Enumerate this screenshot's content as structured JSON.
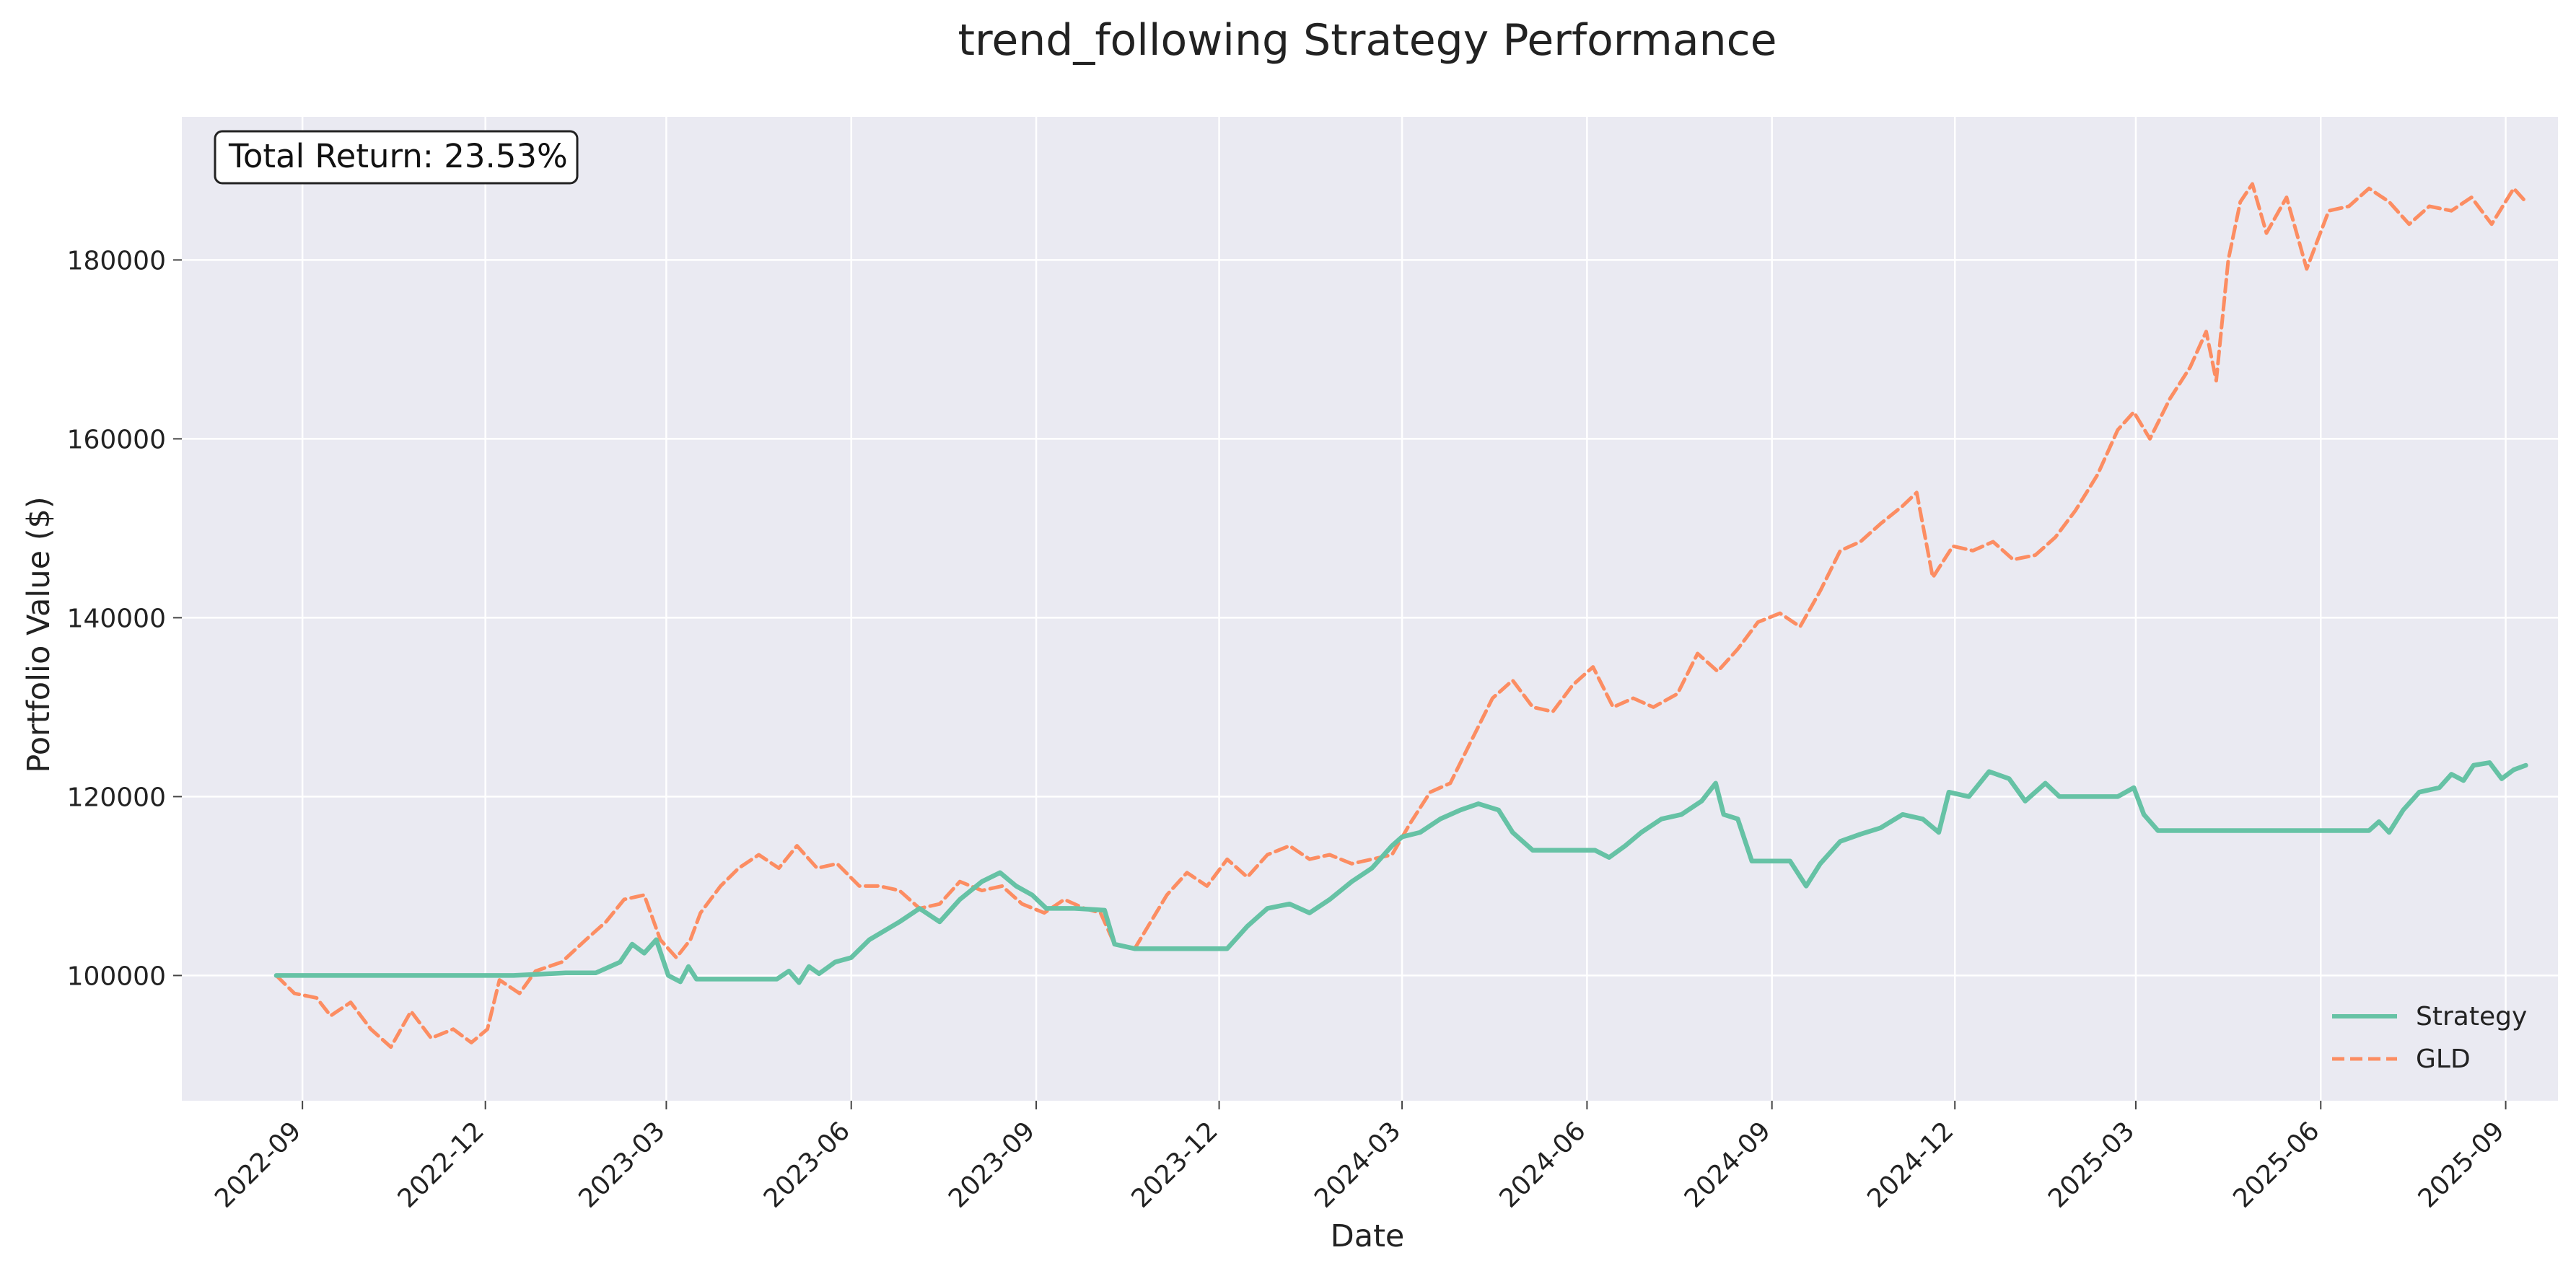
{
  "chart_data": {
    "type": "line",
    "title": "trend_following Strategy Performance",
    "xlabel": "Date",
    "ylabel": "Portfolio Value ($)",
    "annotation": "Total Return: 23.53%",
    "x_ticks": [
      "2022-09",
      "2022-12",
      "2023-03",
      "2023-06",
      "2023-09",
      "2023-12",
      "2024-03",
      "2024-06",
      "2024-09",
      "2024-12",
      "2025-03",
      "2025-06",
      "2025-09"
    ],
    "y_ticks": [
      "100000",
      "120000",
      "140000",
      "160000",
      "180000"
    ],
    "xlim": [
      "2022-07-03",
      "2025-09-27"
    ],
    "ylim": [
      86000,
      196000
    ],
    "grid": true,
    "legend_position": "lower-right",
    "series": [
      {
        "name": "Strategy",
        "color": "#66c2a5",
        "style": "solid",
        "points": [
          [
            "2022-08-19",
            100000
          ],
          [
            "2022-09-15",
            100000
          ],
          [
            "2022-10-15",
            100000
          ],
          [
            "2022-11-15",
            100000
          ],
          [
            "2022-12-15",
            100000
          ],
          [
            "2023-01-10",
            100300
          ],
          [
            "2023-01-25",
            100300
          ],
          [
            "2023-02-06",
            101500
          ],
          [
            "2023-02-12",
            103500
          ],
          [
            "2023-02-18",
            102500
          ],
          [
            "2023-02-24",
            104000
          ],
          [
            "2023-03-02",
            100000
          ],
          [
            "2023-03-08",
            99300
          ],
          [
            "2023-03-12",
            101000
          ],
          [
            "2023-03-16",
            99600
          ],
          [
            "2023-04-10",
            99600
          ],
          [
            "2023-04-25",
            99600
          ],
          [
            "2023-05-01",
            100500
          ],
          [
            "2023-05-06",
            99200
          ],
          [
            "2023-05-11",
            101000
          ],
          [
            "2023-05-16",
            100200
          ],
          [
            "2023-05-24",
            101500
          ],
          [
            "2023-06-01",
            102000
          ],
          [
            "2023-06-10",
            104000
          ],
          [
            "2023-06-25",
            106000
          ],
          [
            "2023-07-05",
            107500
          ],
          [
            "2023-07-15",
            106000
          ],
          [
            "2023-07-25",
            108500
          ],
          [
            "2023-08-05",
            110500
          ],
          [
            "2023-08-14",
            111500
          ],
          [
            "2023-08-22",
            110000
          ],
          [
            "2023-08-30",
            109000
          ],
          [
            "2023-09-06",
            107500
          ],
          [
            "2023-09-20",
            107500
          ],
          [
            "2023-10-05",
            107300
          ],
          [
            "2023-10-10",
            103500
          ],
          [
            "2023-10-20",
            103000
          ],
          [
            "2023-11-15",
            103000
          ],
          [
            "2023-12-05",
            103000
          ],
          [
            "2023-12-15",
            105500
          ],
          [
            "2023-12-25",
            107500
          ],
          [
            "2024-01-05",
            108000
          ],
          [
            "2024-01-15",
            107000
          ],
          [
            "2024-01-25",
            108500
          ],
          [
            "2024-02-05",
            110500
          ],
          [
            "2024-02-15",
            112000
          ],
          [
            "2024-02-25",
            114500
          ],
          [
            "2024-03-01",
            115500
          ],
          [
            "2024-03-10",
            116000
          ],
          [
            "2024-03-20",
            117500
          ],
          [
            "2024-03-30",
            118500
          ],
          [
            "2024-04-08",
            119200
          ],
          [
            "2024-04-18",
            118500
          ],
          [
            "2024-04-25",
            116000
          ],
          [
            "2024-05-05",
            114000
          ],
          [
            "2024-05-20",
            114000
          ],
          [
            "2024-06-05",
            114000
          ],
          [
            "2024-06-12",
            113200
          ],
          [
            "2024-06-20",
            114500
          ],
          [
            "2024-06-28",
            116000
          ],
          [
            "2024-07-08",
            117500
          ],
          [
            "2024-07-18",
            118000
          ],
          [
            "2024-07-28",
            119500
          ],
          [
            "2024-08-04",
            121500
          ],
          [
            "2024-08-08",
            118000
          ],
          [
            "2024-08-15",
            117500
          ],
          [
            "2024-08-22",
            112800
          ],
          [
            "2024-09-10",
            112800
          ],
          [
            "2024-09-18",
            110000
          ],
          [
            "2024-09-25",
            112500
          ],
          [
            "2024-10-05",
            115000
          ],
          [
            "2024-10-15",
            115800
          ],
          [
            "2024-10-25",
            116500
          ],
          [
            "2024-11-05",
            118000
          ],
          [
            "2024-11-15",
            117500
          ],
          [
            "2024-11-23",
            116000
          ],
          [
            "2024-11-28",
            120500
          ],
          [
            "2024-12-08",
            120000
          ],
          [
            "2024-12-18",
            122800
          ],
          [
            "2024-12-28",
            122000
          ],
          [
            "2025-01-05",
            119500
          ],
          [
            "2025-01-15",
            121500
          ],
          [
            "2025-01-22",
            120000
          ],
          [
            "2025-02-05",
            120000
          ],
          [
            "2025-02-20",
            120000
          ],
          [
            "2025-02-28",
            121000
          ],
          [
            "2025-03-05",
            118000
          ],
          [
            "2025-03-12",
            116200
          ],
          [
            "2025-04-15",
            116200
          ],
          [
            "2025-05-15",
            116200
          ],
          [
            "2025-06-25",
            116200
          ],
          [
            "2025-06-30",
            117200
          ],
          [
            "2025-07-05",
            116000
          ],
          [
            "2025-07-12",
            118500
          ],
          [
            "2025-07-20",
            120500
          ],
          [
            "2025-07-30",
            121000
          ],
          [
            "2025-08-05",
            122500
          ],
          [
            "2025-08-11",
            121800
          ],
          [
            "2025-08-16",
            123500
          ],
          [
            "2025-08-24",
            123800
          ],
          [
            "2025-08-30",
            122000
          ],
          [
            "2025-09-05",
            123000
          ],
          [
            "2025-09-11",
            123500
          ]
        ]
      },
      {
        "name": "GLD",
        "color": "#fc8d62",
        "style": "dashed",
        "points": [
          [
            "2022-08-19",
            100000
          ],
          [
            "2022-08-28",
            98000
          ],
          [
            "2022-09-08",
            97500
          ],
          [
            "2022-09-15",
            95500
          ],
          [
            "2022-09-25",
            97000
          ],
          [
            "2022-10-05",
            94000
          ],
          [
            "2022-10-15",
            92000
          ],
          [
            "2022-10-25",
            96000
          ],
          [
            "2022-11-04",
            93000
          ],
          [
            "2022-11-15",
            94000
          ],
          [
            "2022-11-24",
            92500
          ],
          [
            "2022-12-02",
            94000
          ],
          [
            "2022-12-08",
            99500
          ],
          [
            "2022-12-18",
            98000
          ],
          [
            "2022-12-26",
            100500
          ],
          [
            "2023-01-08",
            101500
          ],
          [
            "2023-01-20",
            104000
          ],
          [
            "2023-01-30",
            106000
          ],
          [
            "2023-02-08",
            108500
          ],
          [
            "2023-02-18",
            109000
          ],
          [
            "2023-02-26",
            104000
          ],
          [
            "2023-03-06",
            102000
          ],
          [
            "2023-03-13",
            104000
          ],
          [
            "2023-03-18",
            107000
          ],
          [
            "2023-03-28",
            110000
          ],
          [
            "2023-04-06",
            112000
          ],
          [
            "2023-04-16",
            113500
          ],
          [
            "2023-04-26",
            112000
          ],
          [
            "2023-05-05",
            114500
          ],
          [
            "2023-05-15",
            112000
          ],
          [
            "2023-05-25",
            112500
          ],
          [
            "2023-06-05",
            110000
          ],
          [
            "2023-06-15",
            110000
          ],
          [
            "2023-06-25",
            109500
          ],
          [
            "2023-07-05",
            107500
          ],
          [
            "2023-07-15",
            108000
          ],
          [
            "2023-07-25",
            110500
          ],
          [
            "2023-08-05",
            109500
          ],
          [
            "2023-08-15",
            110000
          ],
          [
            "2023-08-25",
            108000
          ],
          [
            "2023-09-05",
            107000
          ],
          [
            "2023-09-15",
            108500
          ],
          [
            "2023-09-25",
            107500
          ],
          [
            "2023-10-03",
            107000
          ],
          [
            "2023-10-10",
            103500
          ],
          [
            "2023-10-20",
            103000
          ],
          [
            "2023-10-28",
            106000
          ],
          [
            "2023-11-05",
            109000
          ],
          [
            "2023-11-15",
            111500
          ],
          [
            "2023-11-25",
            110000
          ],
          [
            "2023-12-05",
            113000
          ],
          [
            "2023-12-15",
            111000
          ],
          [
            "2023-12-25",
            113500
          ],
          [
            "2024-01-05",
            114500
          ],
          [
            "2024-01-15",
            113000
          ],
          [
            "2024-01-25",
            113500
          ],
          [
            "2024-02-05",
            112500
          ],
          [
            "2024-02-15",
            113000
          ],
          [
            "2024-02-25",
            113500
          ],
          [
            "2024-03-05",
            117000
          ],
          [
            "2024-03-15",
            120500
          ],
          [
            "2024-03-25",
            121500
          ],
          [
            "2024-04-05",
            126500
          ],
          [
            "2024-04-15",
            131000
          ],
          [
            "2024-04-25",
            133000
          ],
          [
            "2024-05-05",
            130000
          ],
          [
            "2024-05-15",
            129500
          ],
          [
            "2024-05-25",
            132500
          ],
          [
            "2024-06-04",
            134500
          ],
          [
            "2024-06-14",
            130000
          ],
          [
            "2024-06-24",
            131000
          ],
          [
            "2024-07-04",
            130000
          ],
          [
            "2024-07-16",
            131500
          ],
          [
            "2024-07-26",
            136000
          ],
          [
            "2024-08-05",
            134000
          ],
          [
            "2024-08-15",
            136500
          ],
          [
            "2024-08-25",
            139500
          ],
          [
            "2024-09-05",
            140500
          ],
          [
            "2024-09-15",
            139000
          ],
          [
            "2024-09-25",
            143000
          ],
          [
            "2024-10-05",
            147500
          ],
          [
            "2024-10-15",
            148500
          ],
          [
            "2024-10-25",
            150500
          ],
          [
            "2024-11-05",
            152500
          ],
          [
            "2024-11-12",
            154000
          ],
          [
            "2024-11-20",
            144500
          ],
          [
            "2024-11-30",
            148000
          ],
          [
            "2024-12-10",
            147500
          ],
          [
            "2024-12-20",
            148500
          ],
          [
            "2024-12-30",
            146500
          ],
          [
            "2025-01-10",
            147000
          ],
          [
            "2025-01-20",
            149000
          ],
          [
            "2025-01-30",
            152000
          ],
          [
            "2025-02-10",
            156000
          ],
          [
            "2025-02-20",
            161000
          ],
          [
            "2025-02-28",
            163000
          ],
          [
            "2025-03-08",
            160000
          ],
          [
            "2025-03-18",
            164500
          ],
          [
            "2025-03-28",
            168000
          ],
          [
            "2025-04-05",
            172000
          ],
          [
            "2025-04-10",
            166500
          ],
          [
            "2025-04-16",
            180000
          ],
          [
            "2025-04-22",
            186500
          ],
          [
            "2025-04-28",
            188500
          ],
          [
            "2025-05-05",
            183000
          ],
          [
            "2025-05-15",
            187000
          ],
          [
            "2025-05-25",
            179000
          ],
          [
            "2025-06-05",
            185500
          ],
          [
            "2025-06-15",
            186000
          ],
          [
            "2025-06-25",
            188000
          ],
          [
            "2025-07-05",
            186500
          ],
          [
            "2025-07-15",
            184000
          ],
          [
            "2025-07-25",
            186000
          ],
          [
            "2025-08-05",
            185500
          ],
          [
            "2025-08-15",
            187000
          ],
          [
            "2025-08-25",
            184000
          ],
          [
            "2025-09-05",
            188000
          ],
          [
            "2025-09-11",
            186500
          ]
        ]
      }
    ]
  }
}
